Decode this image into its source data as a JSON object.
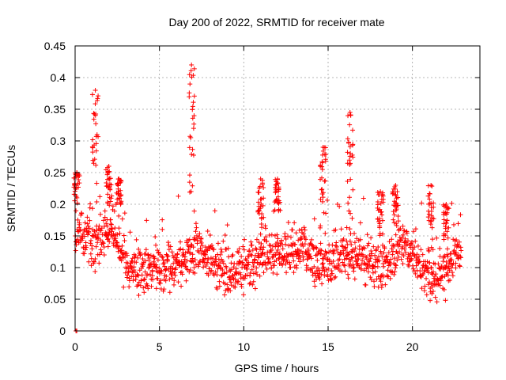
{
  "chart_data": {
    "type": "scatter",
    "title": "Day 200 of 2022, SRMTID for receiver mate",
    "xlabel": "GPS time / hours",
    "ylabel": "SRMTID / TECUs",
    "xlim": [
      0,
      24
    ],
    "ylim": [
      0,
      0.45
    ],
    "x_ticks": [
      0,
      5,
      10,
      15,
      20
    ],
    "x_tick_labels": [
      "0",
      "5",
      "10",
      "15",
      "20"
    ],
    "y_ticks": [
      0,
      0.05,
      0.1,
      0.15,
      0.2,
      0.25,
      0.3,
      0.35,
      0.4,
      0.45
    ],
    "y_tick_labels": [
      "0",
      "0.05",
      "0.1",
      "0.15",
      "0.2",
      "0.25",
      "0.3",
      "0.35",
      "0.4",
      "0.45"
    ],
    "grid": true,
    "marker": "+",
    "marker_color": "#ff0000",
    "time_range_hours": [
      0,
      22.9
    ],
    "points_per_hour": 60,
    "baseline_profile": [
      [
        0,
        0.16
      ],
      [
        1.0,
        0.14
      ],
      [
        2.3,
        0.16
      ],
      [
        3.0,
        0.1
      ],
      [
        5.0,
        0.095
      ],
      [
        6.5,
        0.11
      ],
      [
        7.5,
        0.13
      ],
      [
        9.0,
        0.09
      ],
      [
        10.0,
        0.095
      ],
      [
        11.0,
        0.12
      ],
      [
        13.5,
        0.13
      ],
      [
        14.5,
        0.105
      ],
      [
        15.5,
        0.12
      ],
      [
        17.0,
        0.12
      ],
      [
        18.5,
        0.1
      ],
      [
        19.5,
        0.14
      ],
      [
        20.3,
        0.11
      ],
      [
        21.3,
        0.075
      ],
      [
        22.9,
        0.13
      ]
    ],
    "spread": 0.03,
    "peaks": [
      {
        "t": 0.1,
        "max": 0.25
      },
      {
        "t": 1.2,
        "max": 0.38
      },
      {
        "t": 2.0,
        "max": 0.26
      },
      {
        "t": 2.6,
        "max": 0.24
      },
      {
        "t": 6.9,
        "max": 0.42
      },
      {
        "t": 11.0,
        "max": 0.24
      },
      {
        "t": 12.0,
        "max": 0.24
      },
      {
        "t": 14.7,
        "max": 0.29
      },
      {
        "t": 16.3,
        "max": 0.345
      },
      {
        "t": 18.1,
        "max": 0.22
      },
      {
        "t": 19.0,
        "max": 0.23
      },
      {
        "t": 21.1,
        "max": 0.23
      },
      {
        "t": 22.0,
        "max": 0.2
      }
    ],
    "outliers": [
      {
        "x": 0.05,
        "y": 0.0
      },
      {
        "x": 0.1,
        "y": 0.0
      }
    ]
  }
}
